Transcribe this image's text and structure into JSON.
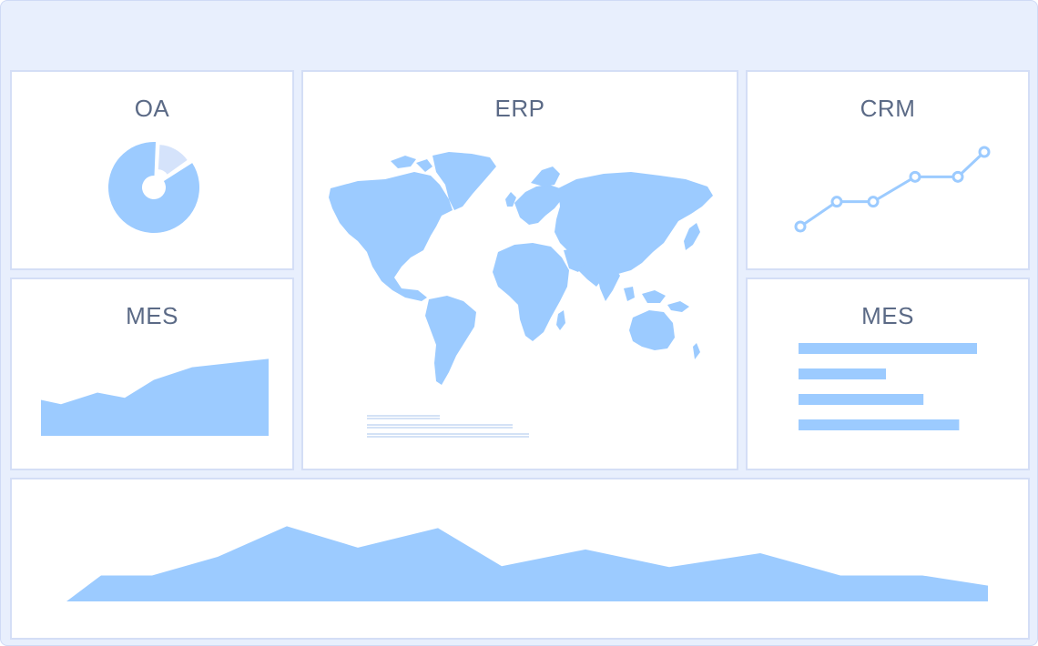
{
  "panels": {
    "oa": {
      "title": "OA"
    },
    "erp": {
      "title": "ERP"
    },
    "crm": {
      "title": "CRM"
    },
    "mes_left": {
      "title": "MES"
    },
    "mes_right": {
      "title": "MES"
    }
  },
  "colors": {
    "accent": "#9ccbff",
    "accent_light": "#d5e3fb",
    "title": "#5b6a86",
    "border": "#d4def6",
    "background": "#e8effd"
  },
  "icons": {
    "erp_map": "world-map-icon"
  },
  "chart_data": [
    {
      "id": "oa-pie",
      "type": "pie",
      "values": [
        85,
        15
      ]
    },
    {
      "id": "crm-line",
      "type": "line",
      "values": [
        1,
        2,
        2,
        3,
        3,
        4
      ]
    },
    {
      "id": "mes-left-area",
      "type": "area",
      "values": [
        3.4,
        3.0,
        4.1,
        3.6,
        5.3,
        6.5,
        6.9,
        7.3
      ]
    },
    {
      "id": "mes-right-bar",
      "type": "bar",
      "values": [
        100,
        49,
        70,
        90
      ]
    },
    {
      "id": "bottom-area",
      "type": "area",
      "values": [
        2.8,
        2.8,
        4.8,
        8.1,
        5.8,
        7.9,
        3.8,
        5.6,
        3.7,
        5.2,
        2.8,
        2.8,
        1.7
      ]
    }
  ]
}
